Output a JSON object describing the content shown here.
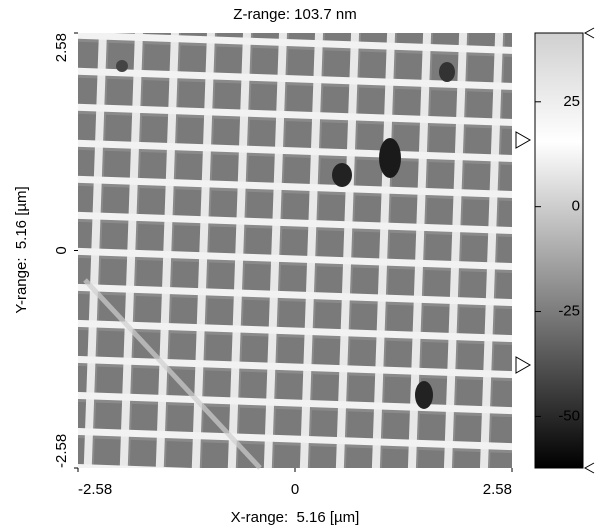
{
  "chart_data": {
    "type": "image",
    "title": "Z-range: 103.7 nm",
    "x_label": "X-range:  5.16 [µm]",
    "y_label": "Y-range:  5.16 [µm]",
    "xlim": [
      -2.58,
      2.58
    ],
    "xticks": [
      -2.58,
      0,
      2.58
    ],
    "ylim": [
      -2.58,
      2.58
    ],
    "yticks": [
      -2.58,
      0,
      2.58
    ],
    "colorbar": {
      "zlim": [
        -62.3,
        41.4
      ],
      "ticks": [
        25,
        0,
        -25,
        -50
      ]
    }
  }
}
